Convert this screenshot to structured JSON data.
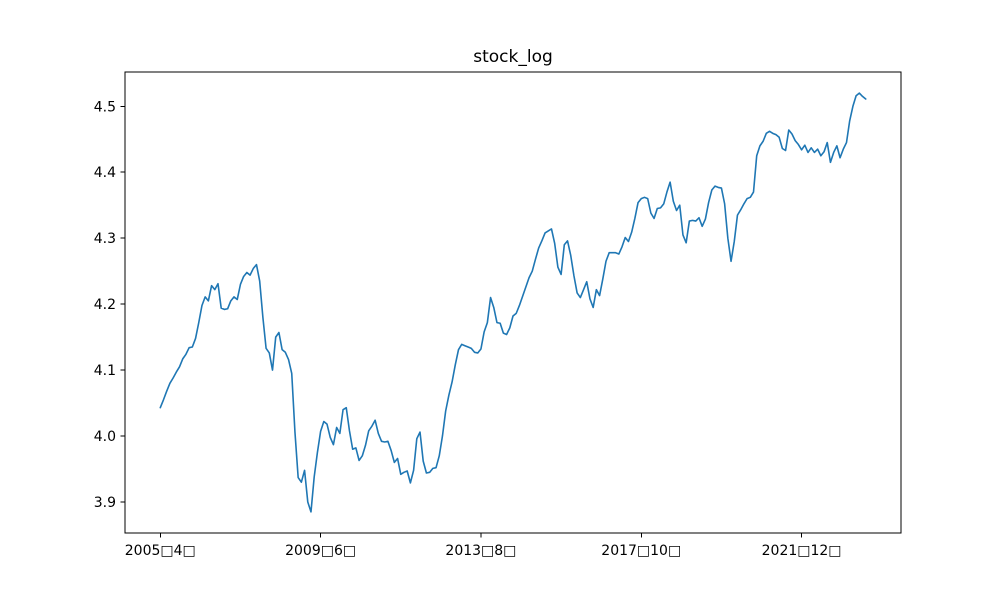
{
  "window": {
    "background": "#ffffff"
  },
  "chart_data": {
    "type": "line",
    "title": "stock_log",
    "grid": false,
    "legend": false,
    "line_color": "#1f77b4",
    "axis_color": "#000000",
    "text_color": "#000000",
    "xlim": [
      -11,
      231
    ],
    "ylim": [
      3.853,
      4.552
    ],
    "x_tick_positions": [
      0,
      50,
      100,
      150,
      200
    ],
    "x_tick_labels": [
      "2005□4□",
      "2009□6□",
      "2013□8□",
      "2017□10□",
      "2021□12□"
    ],
    "y_tick_values": [
      3.9,
      4.0,
      4.1,
      4.2,
      4.3,
      4.4,
      4.5
    ],
    "y_tick_labels": [
      "3.9",
      "4.0",
      "4.1",
      "4.2",
      "4.3",
      "4.4",
      "4.5"
    ],
    "x_start_label": "2005□4□",
    "x_unit": "month-index",
    "series": [
      {
        "name": "stock_log",
        "color": "#1f77b4",
        "x_first": 0,
        "values": [
          4.043,
          4.055,
          4.068,
          4.08,
          4.088,
          4.097,
          4.105,
          4.117,
          4.124,
          4.134,
          4.135,
          4.148,
          4.172,
          4.198,
          4.211,
          4.205,
          4.228,
          4.222,
          4.231,
          4.194,
          4.192,
          4.193,
          4.205,
          4.211,
          4.207,
          4.23,
          4.242,
          4.248,
          4.244,
          4.254,
          4.26,
          4.235,
          4.18,
          4.133,
          4.126,
          4.1,
          4.15,
          4.157,
          4.131,
          4.127,
          4.116,
          4.095,
          4.006,
          3.937,
          3.93,
          3.948,
          3.9,
          3.885,
          3.938,
          3.975,
          4.007,
          4.022,
          4.018,
          3.998,
          3.987,
          4.013,
          4.004,
          4.04,
          4.043,
          4.008,
          3.98,
          3.982,
          3.963,
          3.97,
          3.986,
          4.008,
          4.015,
          4.024,
          4.004,
          3.992,
          3.991,
          3.992,
          3.978,
          3.96,
          3.966,
          3.942,
          3.945,
          3.947,
          3.929,
          3.948,
          3.996,
          4.006,
          3.962,
          3.944,
          3.945,
          3.951,
          3.952,
          3.97,
          4.0,
          4.038,
          4.062,
          4.082,
          4.108,
          4.131,
          4.139,
          4.137,
          4.135,
          4.133,
          4.127,
          4.126,
          4.132,
          4.158,
          4.172,
          4.21,
          4.195,
          4.172,
          4.171,
          4.156,
          4.154,
          4.164,
          4.182,
          4.186,
          4.198,
          4.212,
          4.226,
          4.24,
          4.25,
          4.268,
          4.285,
          4.296,
          4.308,
          4.311,
          4.314,
          4.292,
          4.256,
          4.245,
          4.29,
          4.296,
          4.274,
          4.243,
          4.217,
          4.21,
          4.222,
          4.234,
          4.208,
          4.195,
          4.222,
          4.213,
          4.238,
          4.265,
          4.278,
          4.278,
          4.278,
          4.276,
          4.287,
          4.301,
          4.295,
          4.309,
          4.33,
          4.354,
          4.36,
          4.362,
          4.36,
          4.338,
          4.33,
          4.345,
          4.346,
          4.352,
          4.37,
          4.385,
          4.356,
          4.342,
          4.35,
          4.305,
          4.293,
          4.326,
          4.327,
          4.326,
          4.331,
          4.318,
          4.329,
          4.354,
          4.373,
          4.379,
          4.377,
          4.376,
          4.352,
          4.3,
          4.265,
          4.295,
          4.335,
          4.343,
          4.352,
          4.36,
          4.362,
          4.37,
          4.425,
          4.44,
          4.447,
          4.459,
          4.462,
          4.459,
          4.457,
          4.453,
          4.436,
          4.433,
          4.464,
          4.458,
          4.448,
          4.442,
          4.434,
          4.441,
          4.43,
          4.437,
          4.43,
          4.435,
          4.425,
          4.431,
          4.445,
          4.415,
          4.43,
          4.44,
          4.422,
          4.435,
          4.445,
          4.478,
          4.5,
          4.516,
          4.52,
          4.515,
          4.511
        ]
      }
    ]
  }
}
